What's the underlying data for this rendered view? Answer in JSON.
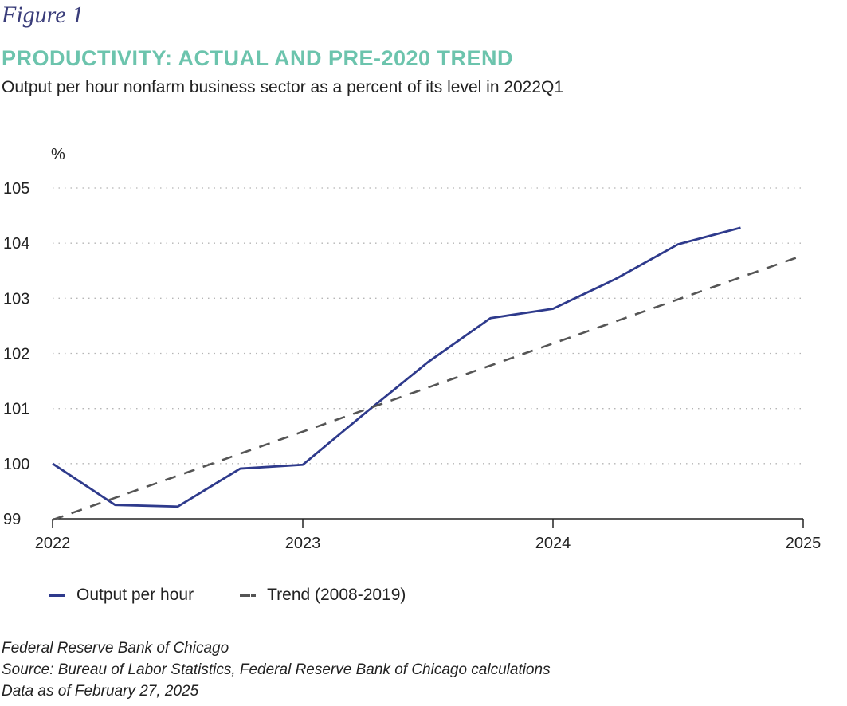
{
  "figure_label": "Figure 1",
  "title": "PRODUCTIVITY: ACTUAL AND PRE-2020 TREND",
  "subtitle": "Output per hour nonfarm business sector as a percent of its level in 2022Q1",
  "colors": {
    "title": "#6cc4ad",
    "actual": "#2e3a8c",
    "trend": "#555555",
    "figure_label": "#3a3d7a"
  },
  "chart_data": {
    "type": "line",
    "ylabel": "%",
    "ylim": [
      99,
      105
    ],
    "yticks": [
      "99",
      "100",
      "101",
      "102",
      "103",
      "104",
      "105"
    ],
    "xlim": [
      2022,
      2025
    ],
    "xticks": [
      "2022",
      "2023",
      "2024",
      "2025"
    ],
    "grid": "horizontal dotted",
    "series": [
      {
        "name": "Output per hour",
        "style": "solid",
        "x": [
          2022.0,
          2022.25,
          2022.5,
          2022.75,
          2023.0,
          2023.25,
          2023.5,
          2023.75,
          2024.0,
          2024.25,
          2024.5,
          2024.75
        ],
        "values": [
          100.0,
          99.25,
          99.22,
          99.91,
          99.98,
          100.92,
          101.84,
          102.64,
          102.81,
          103.35,
          103.98,
          104.28
        ]
      },
      {
        "name": "Trend (2008-2019)",
        "style": "dashed",
        "x": [
          2022.0,
          2025.0
        ],
        "values": [
          98.98,
          103.78
        ]
      }
    ]
  },
  "legend": [
    {
      "label": "Output per hour"
    },
    {
      "label": "Trend (2008-2019)"
    }
  ],
  "footer": {
    "line1": "Federal Reserve Bank of Chicago",
    "line2": "Source: Bureau of Labor Statistics, Federal Reserve Bank of Chicago calculations",
    "line3": "Data as of February 27, 2025"
  }
}
